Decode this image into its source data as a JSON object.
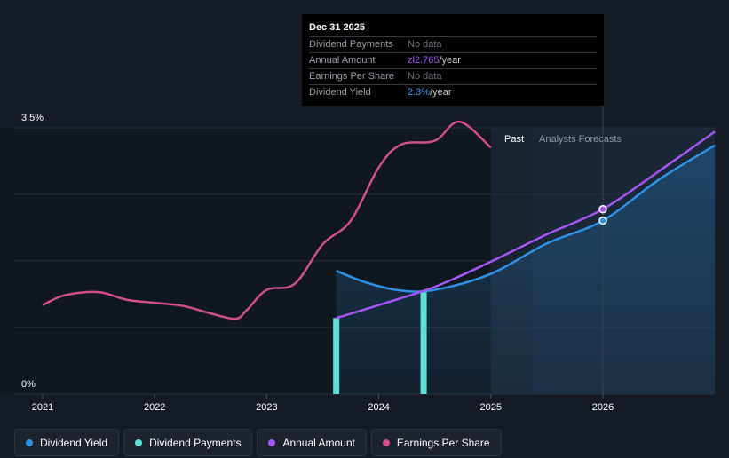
{
  "colors": {
    "background": "#151b24",
    "dividend_yield": "#2e93e6",
    "dividend_payments": "#5ee0d8",
    "annual_amount": "#a855f7",
    "earnings_per_share": "#d0508a",
    "grid": "#2a313b"
  },
  "tooltip": {
    "date": "Dec 31 2025",
    "rows": [
      {
        "label": "Dividend Payments",
        "value": "No data"
      },
      {
        "label": "Annual Amount",
        "value": "zł2.765",
        "unit": "/year"
      },
      {
        "label": "Earnings Per Share",
        "value": "No data"
      },
      {
        "label": "Dividend Yield",
        "value": "2.3%",
        "unit": "/year"
      }
    ]
  },
  "chart_data": {
    "type": "line",
    "title": "",
    "xlabel": "",
    "ylabel": "",
    "ylim": [
      0,
      3.5
    ],
    "y_tick_labels": [
      "3.5%",
      "0%"
    ],
    "x_ticks": [
      2021,
      2022,
      2023,
      2024,
      2025,
      2026
    ],
    "x_range": [
      2020.78,
      2027.0
    ],
    "region_labels": {
      "past": "Past",
      "forecast": "Analysts Forecasts"
    },
    "past_end": 2025.0,
    "forecast_start": 2025.37,
    "series": [
      {
        "name": "Earnings Per Share",
        "unit": "relative",
        "points": [
          [
            2021.0,
            1.17
          ],
          [
            2021.2,
            1.3
          ],
          [
            2021.5,
            1.34
          ],
          [
            2021.75,
            1.24
          ],
          [
            2022.0,
            1.2
          ],
          [
            2022.25,
            1.16
          ],
          [
            2022.5,
            1.06
          ],
          [
            2022.72,
            0.99
          ],
          [
            2022.82,
            1.1
          ],
          [
            2023.0,
            1.37
          ],
          [
            2023.25,
            1.45
          ],
          [
            2023.5,
            1.97
          ],
          [
            2023.75,
            2.28
          ],
          [
            2024.0,
            2.98
          ],
          [
            2024.2,
            3.28
          ],
          [
            2024.5,
            3.33
          ],
          [
            2024.72,
            3.58
          ],
          [
            2025.0,
            3.24
          ]
        ]
      },
      {
        "name": "Dividend Yield",
        "unit": "%",
        "points": [
          [
            2023.62,
            1.62
          ],
          [
            2023.9,
            1.46
          ],
          [
            2024.2,
            1.36
          ],
          [
            2024.5,
            1.37
          ],
          [
            2025.0,
            1.58
          ],
          [
            2025.5,
            1.98
          ],
          [
            2026.0,
            2.28
          ],
          [
            2026.5,
            2.82
          ],
          [
            2027.0,
            3.27
          ]
        ]
      },
      {
        "name": "Annual Amount",
        "unit": "%",
        "points": [
          [
            2023.62,
            1.0
          ],
          [
            2024.0,
            1.17
          ],
          [
            2024.5,
            1.41
          ],
          [
            2025.0,
            1.74
          ],
          [
            2025.5,
            2.1
          ],
          [
            2026.0,
            2.43
          ],
          [
            2026.5,
            2.93
          ],
          [
            2027.0,
            3.45
          ]
        ]
      },
      {
        "name": "Dividend Payments",
        "unit": "bars",
        "bars": [
          {
            "x": 2023.62,
            "value": 1.0
          },
          {
            "x": 2024.4,
            "value": 1.36
          }
        ]
      }
    ],
    "markers": [
      {
        "series": "Annual Amount",
        "x": 2026.0,
        "y": 2.43
      },
      {
        "series": "Dividend Yield",
        "x": 2026.0,
        "y": 2.28
      }
    ]
  },
  "legend": [
    {
      "label": "Dividend Yield",
      "color": "#2e93e6"
    },
    {
      "label": "Dividend Payments",
      "color": "#5ee0d8"
    },
    {
      "label": "Annual Amount",
      "color": "#a855f7"
    },
    {
      "label": "Earnings Per Share",
      "color": "#d0508a"
    }
  ]
}
